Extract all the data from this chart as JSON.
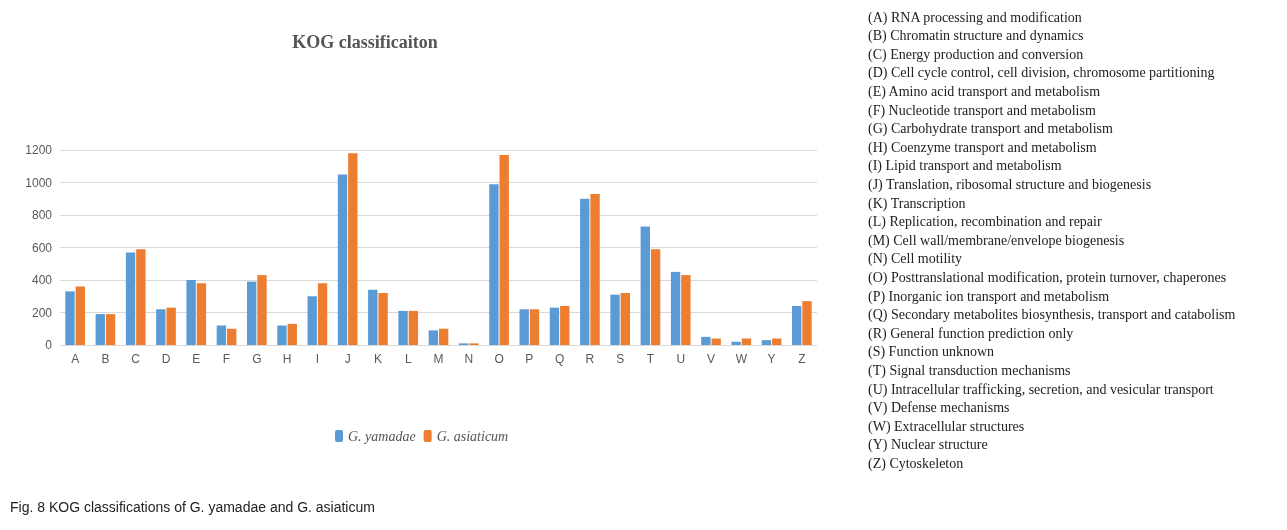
{
  "chart_data": {
    "type": "bar",
    "title": "KOG classificaiton",
    "categories": [
      "A",
      "B",
      "C",
      "D",
      "E",
      "F",
      "G",
      "H",
      "I",
      "J",
      "K",
      "L",
      "M",
      "N",
      "O",
      "P",
      "Q",
      "R",
      "S",
      "T",
      "U",
      "V",
      "W",
      "Y",
      "Z"
    ],
    "series": [
      {
        "name": "G. yamadae",
        "color": "#5b9bd5",
        "values": [
          330,
          190,
          570,
          220,
          400,
          120,
          390,
          120,
          300,
          1050,
          340,
          210,
          90,
          10,
          990,
          220,
          230,
          900,
          310,
          730,
          450,
          50,
          20,
          30,
          240
        ]
      },
      {
        "name": "G. asiaticum",
        "color": "#ed7d31",
        "values": [
          360,
          190,
          590,
          230,
          380,
          100,
          430,
          130,
          380,
          1180,
          320,
          210,
          100,
          10,
          1170,
          220,
          240,
          930,
          320,
          590,
          430,
          40,
          40,
          40,
          270
        ]
      }
    ],
    "ylim": [
      0,
      1200
    ],
    "yticks": [
      0,
      200,
      400,
      600,
      800,
      1000,
      1200
    ],
    "grid": "y",
    "legend": "bottom",
    "annotations": [
      "(A) RNA processing and modification",
      "(B) Chromatin structure and dynamics",
      "(C) Energy production and conversion",
      "(D) Cell cycle control, cell division, chromosome partitioning",
      "(E) Amino acid transport and metabolism",
      "(F) Nucleotide transport and metabolism",
      "(G) Carbohydrate transport and metabolism",
      "(H) Coenzyme transport and metabolism",
      "(I) Lipid transport and metabolism",
      "(J) Translation, ribosomal structure and biogenesis",
      "(K) Transcription",
      "(L) Replication, recombination and repair",
      "(M) Cell wall/membrane/envelope biogenesis",
      "(N) Cell motility",
      "(O) Posttranslational modification, protein turnover, chaperones",
      "(P) Inorganic ion transport and metabolism",
      "(Q) Secondary metabolites biosynthesis, transport and catabolism",
      "(R) General function prediction only",
      "(S) Function unknown",
      "(T) Signal transduction mechanisms",
      "(U) Intracellular trafficking, secretion, and vesicular transport",
      "(V) Defense mechanisms",
      "(W) Extracellular structures",
      "(Y) Nuclear structure",
      "(Z) Cytoskeleton",
      "Fig. 8 KOG classifications of G. yamadae and G. asiaticum"
    ]
  }
}
